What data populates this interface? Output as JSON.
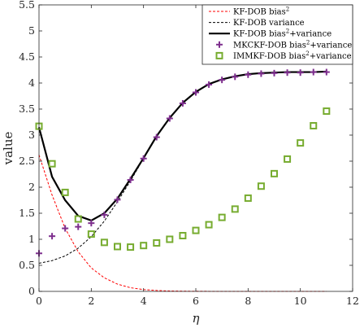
{
  "chart_data": {
    "type": "line",
    "xlabel": "η",
    "ylabel": "value",
    "xlim": [
      0,
      12
    ],
    "ylim": [
      0,
      5.5
    ],
    "xticks": [
      "0",
      "2",
      "4",
      "6",
      "8",
      "10",
      "12"
    ],
    "yticks": [
      "0",
      "0.5",
      "1",
      "1.5",
      "2",
      "2.5",
      "3",
      "3.5",
      "4",
      "4.5",
      "5",
      "5.5"
    ],
    "legend_position": "top-right",
    "grid": false,
    "series": [
      {
        "name": "KF-DOB bias",
        "name_sup": "2",
        "style": "dashed",
        "color": "#ff0000",
        "x": [
          0,
          0.5,
          1,
          1.5,
          2,
          2.5,
          3,
          3.5,
          4,
          4.5,
          5,
          5.5,
          6,
          6.5,
          7,
          7.5,
          8,
          8.5,
          9,
          9.5,
          10,
          10.5,
          11
        ],
        "y": [
          2.62,
          1.85,
          1.21,
          0.76,
          0.45,
          0.26,
          0.14,
          0.07,
          0.035,
          0.017,
          0.008,
          0.004,
          0.002,
          0.001,
          0,
          0,
          0,
          0,
          0,
          0,
          0,
          0,
          0
        ]
      },
      {
        "name": "KF-DOB variance",
        "style": "dashed",
        "color": "#000000",
        "x": [
          0,
          0.5,
          1,
          1.5,
          2,
          2.5,
          3,
          3.5,
          4,
          4.5,
          5,
          5.5,
          6,
          6.5,
          7,
          7.5,
          8,
          8.5,
          9,
          9.5,
          10,
          10.5,
          11
        ],
        "y": [
          0.54,
          0.59,
          0.68,
          0.83,
          1.05,
          1.35,
          1.72,
          2.12,
          2.55,
          2.98,
          3.33,
          3.62,
          3.83,
          3.98,
          4.07,
          4.13,
          4.17,
          4.19,
          4.2,
          4.21,
          4.21,
          4.21,
          4.22
        ]
      },
      {
        "name": "KF-DOB bias",
        "name_sup": "2",
        "name_suffix": "+variance",
        "style": "solid",
        "color": "#000000",
        "x": [
          0,
          0.5,
          1,
          1.5,
          2,
          2.5,
          3,
          3.5,
          4,
          4.5,
          5,
          5.5,
          6,
          6.5,
          7,
          7.5,
          8,
          8.5,
          9,
          9.5,
          10,
          10.5,
          11
        ],
        "y": [
          3.15,
          2.2,
          1.75,
          1.45,
          1.36,
          1.5,
          1.78,
          2.16,
          2.56,
          2.98,
          3.33,
          3.62,
          3.83,
          3.98,
          4.07,
          4.13,
          4.17,
          4.19,
          4.2,
          4.21,
          4.21,
          4.21,
          4.22
        ]
      },
      {
        "name": "MKCKF-DOB bias",
        "name_sup": "2",
        "name_suffix": "+variance",
        "style": "plus",
        "color": "#7e2f8e",
        "x": [
          0,
          0.5,
          1,
          1.5,
          2,
          2.5,
          3,
          3.5,
          4,
          4.5,
          5,
          5.5,
          6,
          6.5,
          7,
          7.5,
          8,
          8.5,
          9,
          9.5,
          10,
          10.5,
          11
        ],
        "y": [
          0.73,
          1.06,
          1.21,
          1.24,
          1.31,
          1.47,
          1.76,
          2.14,
          2.55,
          2.96,
          3.32,
          3.61,
          3.82,
          3.97,
          4.06,
          4.12,
          4.16,
          4.18,
          4.19,
          4.2,
          4.2,
          4.21,
          4.21
        ]
      },
      {
        "name": "IMMKF-DOB bias",
        "name_sup": "2",
        "name_suffix": "+variance",
        "style": "square",
        "color": "#77ac30",
        "x": [
          0,
          0.5,
          1,
          1.5,
          2,
          2.5,
          3,
          3.5,
          4,
          4.5,
          5,
          5.5,
          6,
          6.5,
          7,
          7.5,
          8,
          8.5,
          9,
          9.5,
          10,
          10.5,
          11
        ],
        "y": [
          3.17,
          2.45,
          1.9,
          1.39,
          1.1,
          0.94,
          0.86,
          0.85,
          0.88,
          0.93,
          1.0,
          1.07,
          1.17,
          1.28,
          1.42,
          1.58,
          1.79,
          2.02,
          2.26,
          2.54,
          2.85,
          3.18,
          3.46
        ]
      }
    ]
  }
}
